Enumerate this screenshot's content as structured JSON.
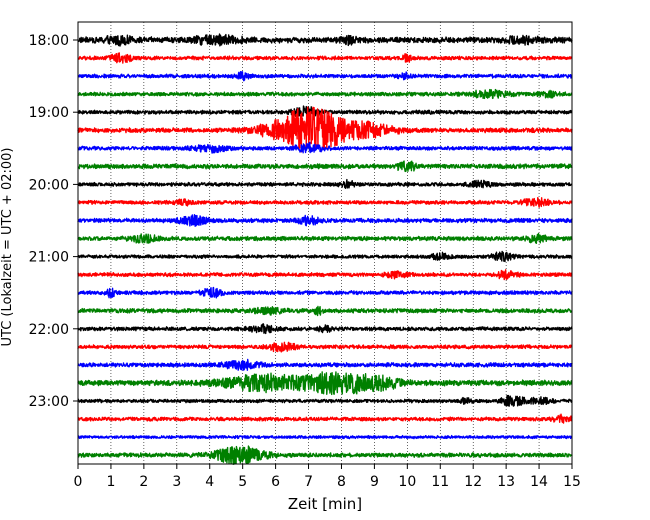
{
  "chart_data": {
    "type": "line",
    "xlabel": "Zeit  [min]",
    "ylabel": "UTC (Lokalzeit = UTC + 02:00)",
    "xlim": [
      0,
      15
    ],
    "x_ticks": [
      0,
      1,
      2,
      3,
      4,
      5,
      6,
      7,
      8,
      9,
      10,
      11,
      12,
      13,
      14,
      15
    ],
    "y_ticks": [
      {
        "label": "18:00",
        "trace": 0
      },
      {
        "label": "19:00",
        "trace": 4
      },
      {
        "label": "20:00",
        "trace": 8
      },
      {
        "label": "21:00",
        "trace": 12
      },
      {
        "label": "22:00",
        "trace": 16
      },
      {
        "label": "23:00",
        "trace": 20
      }
    ],
    "grid": "vertical dotted",
    "trace_interval_min": 15,
    "color_cycle": [
      "#000000",
      "#ff0000",
      "#0000ff",
      "#008000"
    ],
    "traces": [
      {
        "color": "#000000",
        "base_amp": 0.28,
        "events": [
          {
            "t": 1.2,
            "amp": 0.35,
            "dur": 0.4
          },
          {
            "t": 4.2,
            "amp": 0.45,
            "dur": 0.6
          },
          {
            "t": 8.2,
            "amp": 0.35,
            "dur": 0.2
          },
          {
            "t": 13.5,
            "amp": 0.3,
            "dur": 0.5
          }
        ]
      },
      {
        "color": "#ff0000",
        "base_amp": 0.18,
        "events": [
          {
            "t": 1.3,
            "amp": 0.45,
            "dur": 0.3
          },
          {
            "t": 10.0,
            "amp": 0.4,
            "dur": 0.15
          }
        ]
      },
      {
        "color": "#0000ff",
        "base_amp": 0.18,
        "events": [
          {
            "t": 5.0,
            "amp": 0.35,
            "dur": 0.2
          },
          {
            "t": 9.9,
            "amp": 0.3,
            "dur": 0.2
          }
        ]
      },
      {
        "color": "#008000",
        "base_amp": 0.18,
        "events": [
          {
            "t": 12.5,
            "amp": 0.35,
            "dur": 0.6
          },
          {
            "t": 14.3,
            "amp": 0.3,
            "dur": 0.3
          }
        ]
      },
      {
        "color": "#000000",
        "base_amp": 0.18,
        "events": [
          {
            "t": 6.9,
            "amp": 0.5,
            "dur": 0.4
          }
        ]
      },
      {
        "color": "#ff0000",
        "base_amp": 0.22,
        "events": [
          {
            "t": 7.0,
            "amp": 2.4,
            "dur": 1.1
          },
          {
            "t": 8.8,
            "amp": 0.6,
            "dur": 0.8
          }
        ]
      },
      {
        "color": "#0000ff",
        "base_amp": 0.18,
        "events": [
          {
            "t": 4.0,
            "amp": 0.35,
            "dur": 0.5
          },
          {
            "t": 7.0,
            "amp": 0.45,
            "dur": 0.4
          }
        ]
      },
      {
        "color": "#008000",
        "base_amp": 0.22,
        "events": [
          {
            "t": 10.0,
            "amp": 0.4,
            "dur": 0.3
          }
        ]
      },
      {
        "color": "#000000",
        "base_amp": 0.18,
        "events": [
          {
            "t": 8.2,
            "amp": 0.35,
            "dur": 0.2
          },
          {
            "t": 12.2,
            "amp": 0.35,
            "dur": 0.3
          }
        ]
      },
      {
        "color": "#ff0000",
        "base_amp": 0.18,
        "events": [
          {
            "t": 3.2,
            "amp": 0.3,
            "dur": 0.2
          },
          {
            "t": 13.9,
            "amp": 0.4,
            "dur": 0.4
          }
        ]
      },
      {
        "color": "#0000ff",
        "base_amp": 0.2,
        "events": [
          {
            "t": 3.5,
            "amp": 0.45,
            "dur": 0.4
          },
          {
            "t": 7.0,
            "amp": 0.4,
            "dur": 0.3
          }
        ]
      },
      {
        "color": "#008000",
        "base_amp": 0.2,
        "events": [
          {
            "t": 2.0,
            "amp": 0.4,
            "dur": 0.4
          },
          {
            "t": 13.9,
            "amp": 0.4,
            "dur": 0.3
          }
        ]
      },
      {
        "color": "#000000",
        "base_amp": 0.16,
        "events": [
          {
            "t": 11.0,
            "amp": 0.3,
            "dur": 0.3
          },
          {
            "t": 12.9,
            "amp": 0.45,
            "dur": 0.3
          }
        ]
      },
      {
        "color": "#ff0000",
        "base_amp": 0.18,
        "events": [
          {
            "t": 9.7,
            "amp": 0.3,
            "dur": 0.3
          },
          {
            "t": 13.0,
            "amp": 0.4,
            "dur": 0.3
          }
        ]
      },
      {
        "color": "#0000ff",
        "base_amp": 0.18,
        "events": [
          {
            "t": 1.0,
            "amp": 0.4,
            "dur": 0.15
          },
          {
            "t": 4.1,
            "amp": 0.45,
            "dur": 0.3
          }
        ]
      },
      {
        "color": "#008000",
        "base_amp": 0.2,
        "events": [
          {
            "t": 5.8,
            "amp": 0.3,
            "dur": 0.4
          },
          {
            "t": 7.3,
            "amp": 0.45,
            "dur": 0.1
          }
        ]
      },
      {
        "color": "#000000",
        "base_amp": 0.18,
        "events": [
          {
            "t": 5.6,
            "amp": 0.35,
            "dur": 0.4
          },
          {
            "t": 7.5,
            "amp": 0.3,
            "dur": 0.2
          }
        ]
      },
      {
        "color": "#ff0000",
        "base_amp": 0.18,
        "events": [
          {
            "t": 6.2,
            "amp": 0.45,
            "dur": 0.4
          }
        ]
      },
      {
        "color": "#0000ff",
        "base_amp": 0.2,
        "events": [
          {
            "t": 5.0,
            "amp": 0.45,
            "dur": 0.5
          }
        ]
      },
      {
        "color": "#008000",
        "base_amp": 0.26,
        "events": [
          {
            "t": 5.6,
            "amp": 0.8,
            "dur": 1.2
          },
          {
            "t": 7.9,
            "amp": 1.1,
            "dur": 1.0
          },
          {
            "t": 9.2,
            "amp": 0.5,
            "dur": 0.6
          }
        ]
      },
      {
        "color": "#000000",
        "base_amp": 0.16,
        "events": [
          {
            "t": 11.8,
            "amp": 0.35,
            "dur": 0.15
          },
          {
            "t": 13.2,
            "amp": 0.6,
            "dur": 0.3
          },
          {
            "t": 14.0,
            "amp": 0.3,
            "dur": 0.4
          }
        ]
      },
      {
        "color": "#ff0000",
        "base_amp": 0.18,
        "events": [
          {
            "t": 14.7,
            "amp": 0.35,
            "dur": 0.3
          }
        ]
      },
      {
        "color": "#0000ff",
        "base_amp": 0.14,
        "events": []
      },
      {
        "color": "#008000",
        "base_amp": 0.2,
        "events": [
          {
            "t": 4.9,
            "amp": 0.9,
            "dur": 0.7
          }
        ]
      }
    ]
  }
}
